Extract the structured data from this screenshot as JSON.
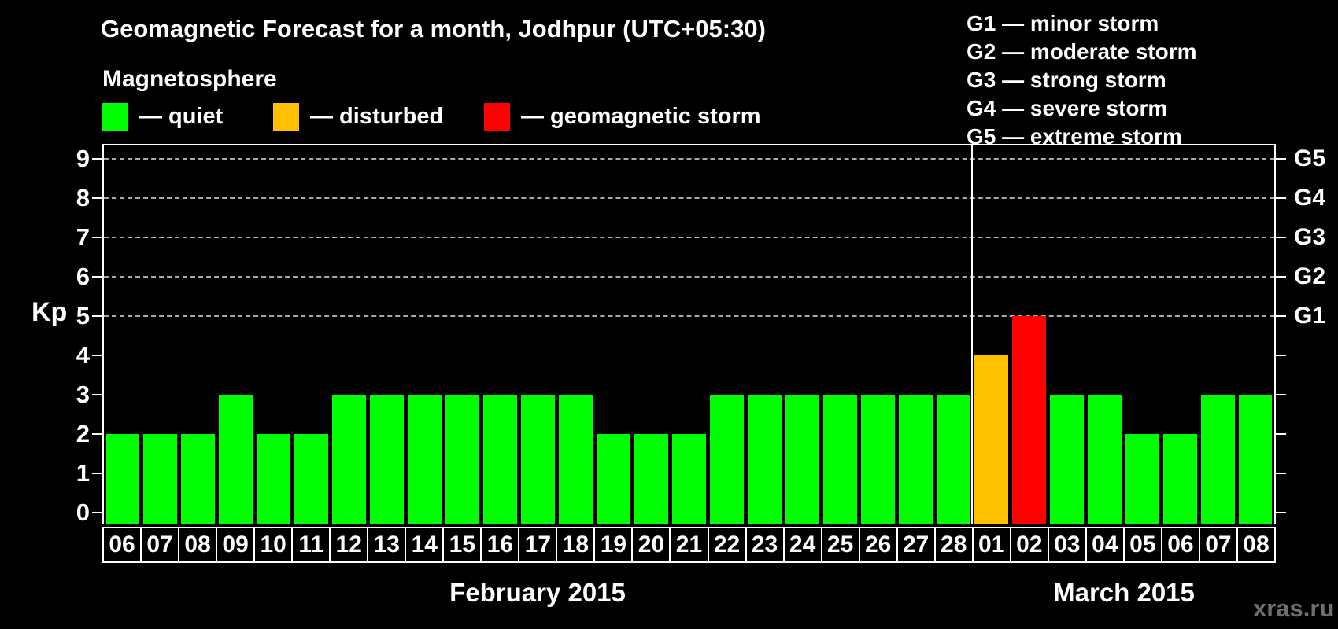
{
  "title": "Geomagnetic Forecast for a month, Jodhpur (UTC+05:30)",
  "legend": {
    "heading": "Magnetosphere",
    "items": [
      {
        "name": "quiet",
        "label": "— quiet",
        "color": "#00ff00"
      },
      {
        "name": "disturbed",
        "label": "— disturbed",
        "color": "#ffc000"
      },
      {
        "name": "storm",
        "label": "— geomagnetic storm",
        "color": "#ff0000"
      }
    ]
  },
  "storm_scale": [
    "G1 — minor storm",
    "G2 — moderate storm",
    "G3 — strong storm",
    "G4 — severe storm",
    "G5 — extreme storm"
  ],
  "watermark": "xras.ru",
  "chart_data": {
    "type": "bar",
    "title": "Geomagnetic Forecast for a month, Jodhpur (UTC+05:30)",
    "xlabel": "",
    "ylabel": "Kp",
    "ylim": [
      0,
      9
    ],
    "yticks": [
      0,
      1,
      2,
      3,
      4,
      5,
      6,
      7,
      8,
      9
    ],
    "gridlines_at_kp": [
      5,
      6,
      7,
      8,
      9
    ],
    "grid": "dashed, only at storm levels G1–G5",
    "right_axis": {
      "labels": [
        "G1",
        "G2",
        "G3",
        "G4",
        "G5"
      ],
      "at_kp": [
        5,
        6,
        7,
        8,
        9
      ]
    },
    "level_colors": {
      "quiet": "#00ff00",
      "disturbed": "#ffc000",
      "storm": "#ff0000"
    },
    "categories": [
      "06",
      "07",
      "08",
      "09",
      "10",
      "11",
      "12",
      "13",
      "14",
      "15",
      "16",
      "17",
      "18",
      "19",
      "20",
      "21",
      "22",
      "23",
      "24",
      "25",
      "26",
      "27",
      "28",
      "01",
      "02",
      "03",
      "04",
      "05",
      "06",
      "07",
      "08"
    ],
    "values": [
      2,
      2,
      2,
      3,
      2,
      2,
      3,
      3,
      3,
      3,
      3,
      3,
      3,
      2,
      2,
      2,
      3,
      3,
      3,
      3,
      3,
      3,
      3,
      4,
      5,
      3,
      3,
      2,
      2,
      3,
      3
    ],
    "levels": [
      "quiet",
      "quiet",
      "quiet",
      "quiet",
      "quiet",
      "quiet",
      "quiet",
      "quiet",
      "quiet",
      "quiet",
      "quiet",
      "quiet",
      "quiet",
      "quiet",
      "quiet",
      "quiet",
      "quiet",
      "quiet",
      "quiet",
      "quiet",
      "quiet",
      "quiet",
      "quiet",
      "disturbed",
      "storm",
      "quiet",
      "quiet",
      "quiet",
      "quiet",
      "quiet",
      "quiet"
    ],
    "months": [
      {
        "label": "February 2015",
        "count": 23
      },
      {
        "label": "March 2015",
        "count": 8
      }
    ],
    "legend_position": "top-left"
  }
}
